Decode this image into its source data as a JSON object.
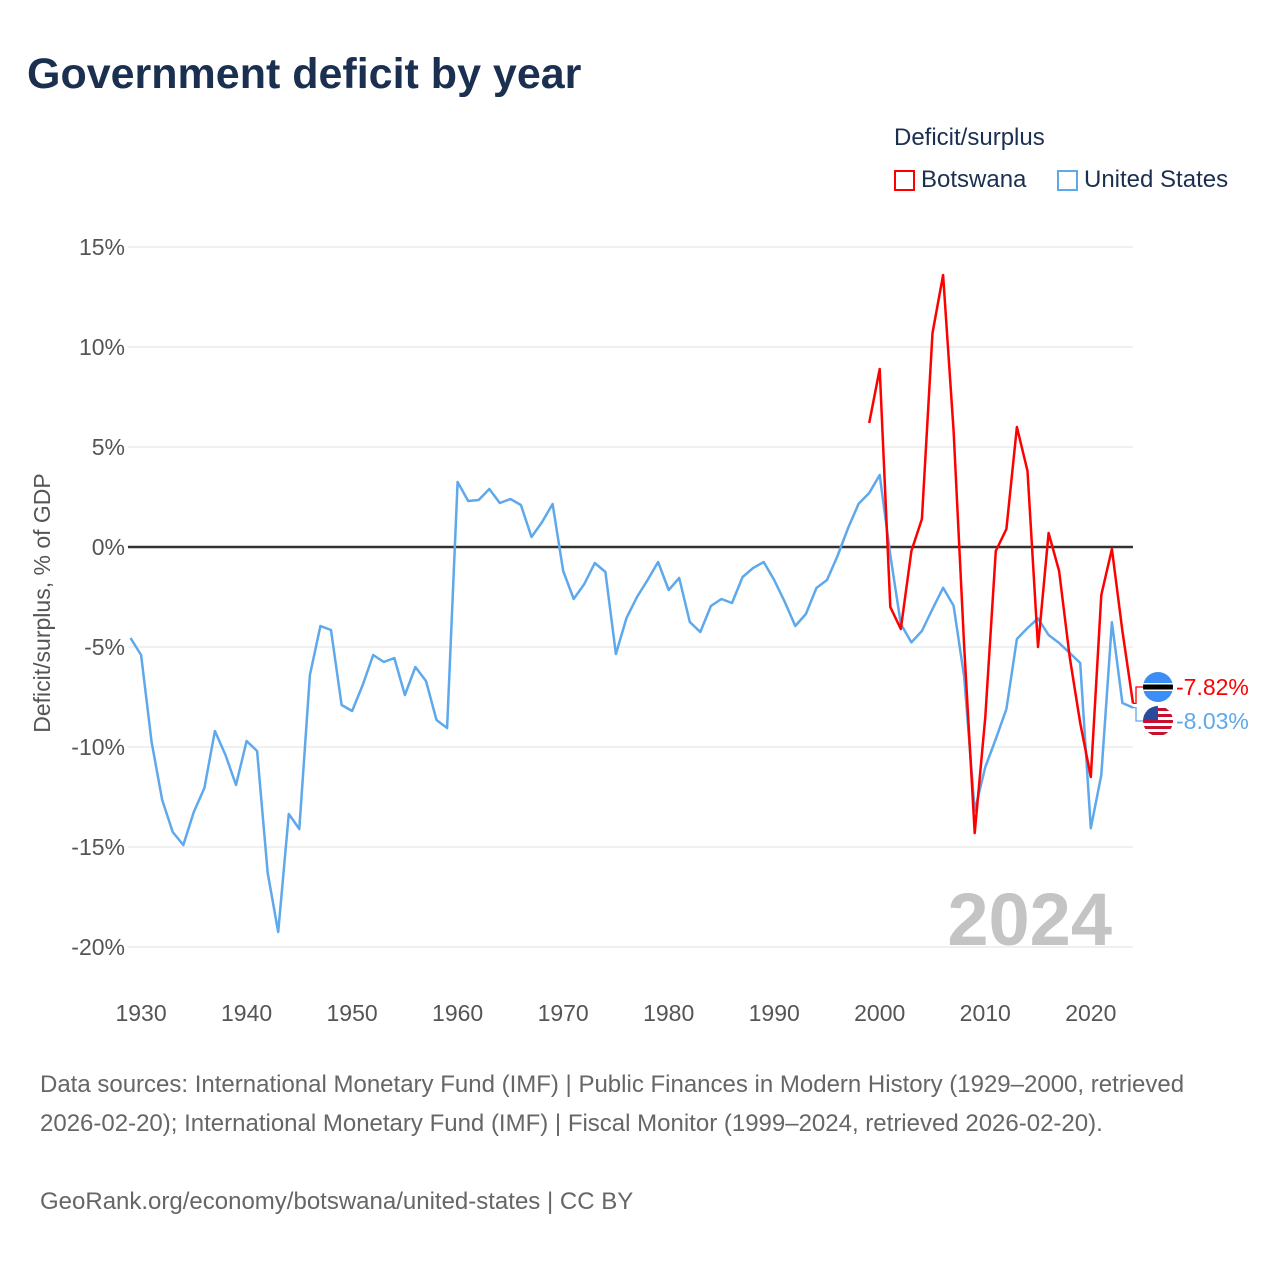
{
  "title": "Government deficit by year",
  "legend": {
    "title": "Deficit/surplus",
    "items": [
      {
        "label": "Botswana",
        "color": "#ff0000"
      },
      {
        "label": "United States",
        "color": "#5ea8ec"
      }
    ]
  },
  "chart_data": {
    "type": "line",
    "title": "Government deficit by year",
    "xlabel": "",
    "ylabel": "Deficit/surplus, % of GDP",
    "xlim": [
      1929,
      2024
    ],
    "ylim": [
      -20,
      15
    ],
    "grid": true,
    "legend_position": "top-right",
    "x_ticks": [
      "1930",
      "1940",
      "1950",
      "1960",
      "1970",
      "1980",
      "1990",
      "2000",
      "2010",
      "2020"
    ],
    "y_ticks": [
      {
        "value": 15,
        "label": "15%"
      },
      {
        "value": 10,
        "label": "10%"
      },
      {
        "value": 5,
        "label": "5%"
      },
      {
        "value": 0,
        "label": "0%"
      },
      {
        "value": -5,
        "label": "-5%"
      },
      {
        "value": -10,
        "label": "-10%"
      },
      {
        "value": -15,
        "label": "-15%"
      },
      {
        "value": -20,
        "label": "-20%"
      }
    ],
    "year_watermark": "2024",
    "series": [
      {
        "name": "Botswana",
        "color": "#ff0000",
        "start_year": 1999,
        "values": [
          6.2,
          8.9,
          -3.0,
          -4.1,
          -0.2,
          1.4,
          10.7,
          13.6,
          5.8,
          -5.0,
          -14.3,
          -8.5,
          -0.2,
          0.9,
          6.0,
          3.8,
          -5.0,
          0.7,
          -1.2,
          -5.5,
          -8.8,
          -11.5,
          -2.4,
          -0.1,
          -4.2,
          -7.82
        ],
        "end_label": "-7.82%",
        "flag": "botswana-flag"
      },
      {
        "name": "United States",
        "color": "#5ea8ec",
        "start_year": 1929,
        "values": [
          -4.55,
          -5.4,
          -9.75,
          -12.65,
          -14.25,
          -14.9,
          -13.25,
          -12.05,
          -9.2,
          -10.4,
          -11.9,
          -9.7,
          -10.2,
          -16.3,
          -19.25,
          -13.35,
          -14.1,
          -6.4,
          -3.95,
          -4.15,
          -7.9,
          -8.2,
          -6.9,
          -5.4,
          -5.75,
          -5.55,
          -7.4,
          -6.0,
          -6.7,
          -8.65,
          -9.05,
          3.25,
          2.3,
          2.35,
          2.9,
          2.2,
          2.4,
          2.1,
          0.5,
          1.25,
          2.15,
          -1.2,
          -2.6,
          -1.85,
          -0.8,
          -1.25,
          -5.35,
          -3.55,
          -2.5,
          -1.65,
          -0.75,
          -2.15,
          -1.55,
          -3.75,
          -4.25,
          -2.95,
          -2.6,
          -2.8,
          -1.5,
          -1.05,
          -0.75,
          -1.65,
          -2.75,
          -3.95,
          -3.35,
          -2.05,
          -1.65,
          -0.45,
          0.95,
          2.16,
          2.7,
          3.6,
          -0.4,
          -3.85,
          -4.77,
          -4.2,
          -3.1,
          -2.04,
          -2.94,
          -6.5,
          -13.2,
          -11.0,
          -9.6,
          -8.1,
          -4.6,
          -4.05,
          -3.57,
          -4.4,
          -4.8,
          -5.3,
          -5.8,
          -14.06,
          -11.4,
          -3.76,
          -7.8,
          -8.03
        ],
        "end_label": "-8.03%",
        "flag": "us-flag"
      }
    ]
  },
  "footer": {
    "sources": "Data sources: International Monetary Fund (IMF) | Public Finances in Modern History (1929–2000, retrieved 2026-02-20); International Monetary Fund (IMF) | Fiscal Monitor (1999–2024, retrieved 2026-02-20).",
    "credit": "GeoRank.org/economy/botswana/united-states | CC BY"
  }
}
